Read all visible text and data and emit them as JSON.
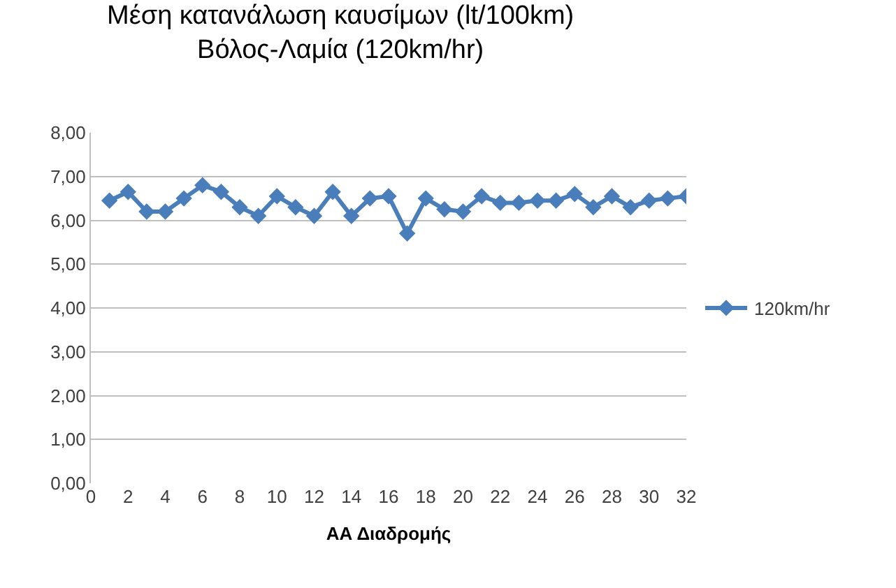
{
  "chart_data": {
    "type": "line",
    "title": "Μέση κατανάλωση καυσίμων (lt/100km)\nΒόλος-Λαμία (120km/hr)",
    "xlabel": "ΑΑ Διαδρομής",
    "x": [
      1,
      2,
      3,
      4,
      5,
      6,
      7,
      8,
      9,
      10,
      11,
      12,
      13,
      14,
      15,
      16,
      17,
      18,
      19,
      20,
      21,
      22,
      23,
      24,
      25,
      26,
      27,
      28,
      29,
      30,
      31,
      32
    ],
    "series": [
      {
        "name": "120km/hr",
        "color": "#4a7ebb",
        "values": [
          6.45,
          6.65,
          6.2,
          6.2,
          6.5,
          6.8,
          6.65,
          6.3,
          6.1,
          6.55,
          6.3,
          6.1,
          6.65,
          6.1,
          6.5,
          6.55,
          5.7,
          6.5,
          6.25,
          6.2,
          6.55,
          6.4,
          6.4,
          6.45,
          6.45,
          6.6,
          6.3,
          6.55,
          6.3,
          6.45,
          6.5,
          6.55
        ]
      }
    ],
    "xlim": [
      0,
      32
    ],
    "xticks": [
      0,
      2,
      4,
      6,
      8,
      10,
      12,
      14,
      16,
      18,
      20,
      22,
      24,
      26,
      28,
      30,
      32
    ],
    "ylim": [
      0,
      8
    ],
    "yticks": [
      {
        "value": 0,
        "label": "0,00"
      },
      {
        "value": 1,
        "label": "1,00"
      },
      {
        "value": 2,
        "label": "2,00"
      },
      {
        "value": 3,
        "label": "3,00"
      },
      {
        "value": 4,
        "label": "4,00"
      },
      {
        "value": 5,
        "label": "5,00"
      },
      {
        "value": 6,
        "label": "6,00"
      },
      {
        "value": 7,
        "label": "7,00"
      },
      {
        "value": 8,
        "label": "8,00"
      }
    ],
    "grid": "y",
    "legend": "right",
    "marker": "diamond",
    "line_style": "solid"
  }
}
